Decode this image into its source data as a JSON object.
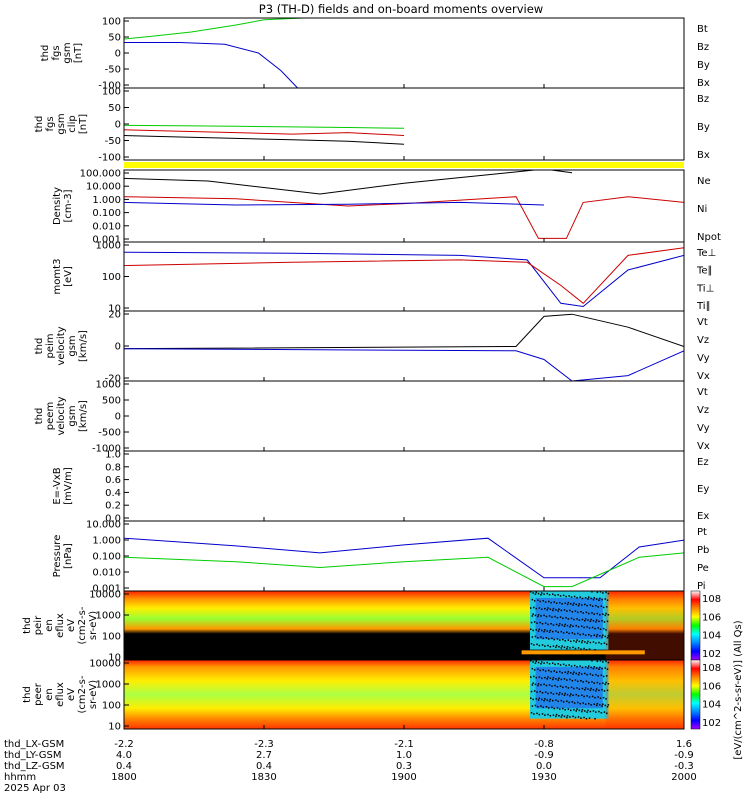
{
  "title": "P3 (TH-D) fields and on-board moments overview",
  "colors": {
    "black": "#000000",
    "red": "#cc0000",
    "green": "#00cc00",
    "blue": "#0000cc",
    "yellow": "#ffff00"
  },
  "chart_data": [
    {
      "type": "line",
      "panel": "fgs_gsm",
      "ylabel": [
        "thd",
        "fgs",
        "gsm",
        "[nT]"
      ],
      "ylim": [
        -100,
        100
      ],
      "ticks": [
        "100",
        "50",
        "0",
        "-50",
        "-100"
      ],
      "legend": [
        {
          "name": "Bt",
          "color": "black"
        },
        {
          "name": "Bz",
          "color": "red"
        },
        {
          "name": "By",
          "color": "green"
        },
        {
          "name": "Bx",
          "color": "blue"
        }
      ],
      "series": [
        {
          "name": "By",
          "color": "green",
          "x": [
            0,
            0.05,
            0.12,
            0.2,
            0.25,
            0.32
          ],
          "y": [
            40,
            48,
            60,
            80,
            95,
            100
          ]
        },
        {
          "name": "Bx",
          "color": "blue",
          "x": [
            0,
            0.1,
            0.18,
            0.24,
            0.28,
            0.31
          ],
          "y": [
            30,
            30,
            25,
            0,
            -50,
            -100
          ]
        }
      ]
    },
    {
      "type": "line",
      "panel": "fgs_gsm_clip",
      "ylabel": [
        "thd",
        "fgs",
        "gsm",
        "clip",
        "[nT]"
      ],
      "ylim": [
        -125,
        125
      ],
      "ticks": [
        "100",
        "50",
        "0",
        "-50",
        "-100"
      ],
      "legend": [
        {
          "name": "Bz",
          "color": "red"
        },
        {
          "name": "By",
          "color": "green"
        },
        {
          "name": "Bx",
          "color": "black"
        }
      ],
      "series": [
        {
          "name": "Bz",
          "color": "red",
          "x": [
            0,
            0.1,
            0.2,
            0.3,
            0.4,
            0.5
          ],
          "y": [
            -20,
            -25,
            -30,
            -35,
            -30,
            -40
          ]
        },
        {
          "name": "By",
          "color": "green",
          "x": [
            0,
            0.1,
            0.2,
            0.3,
            0.4,
            0.5
          ],
          "y": [
            -5,
            -6,
            -8,
            -10,
            -12,
            -15
          ]
        },
        {
          "name": "Bx",
          "color": "black",
          "x": [
            0,
            0.1,
            0.2,
            0.3,
            0.4,
            0.5
          ],
          "y": [
            -40,
            -45,
            -50,
            -55,
            -60,
            -70
          ]
        }
      ]
    },
    {
      "type": "line",
      "panel": "density",
      "ylabel": [
        "Density",
        "[cm-3]"
      ],
      "log": true,
      "ylim": [
        0.0005,
        500
      ],
      "ticks": [
        "100.000",
        "10.000",
        "1.000",
        "0.100",
        "0.010",
        "0.001"
      ],
      "legend": [
        {
          "name": "Ne",
          "color": "red"
        },
        {
          "name": "Ni",
          "color": "black"
        },
        {
          "name": "Npot",
          "color": "blue"
        }
      ],
      "series": [
        {
          "name": "Ni",
          "color": "black",
          "x": [
            0,
            0.15,
            0.35,
            0.5,
            0.65,
            0.75,
            0.8
          ],
          "y": [
            100,
            60,
            5,
            40,
            200,
            600,
            300
          ]
        },
        {
          "name": "Ne",
          "color": "red",
          "x": [
            0,
            0.2,
            0.4,
            0.5,
            0.7,
            0.74,
            0.79,
            0.82,
            0.9,
            1
          ],
          "y": [
            3,
            2,
            0.5,
            0.8,
            3,
            0.001,
            0.001,
            1,
            3,
            1
          ]
        },
        {
          "name": "Npot",
          "color": "blue",
          "x": [
            0,
            0.2,
            0.4,
            0.6,
            0.75
          ],
          "y": [
            1,
            0.6,
            0.7,
            1,
            0.6
          ]
        }
      ]
    },
    {
      "type": "line",
      "panel": "moms",
      "ylabel": [
        "momt3",
        "[eV]"
      ],
      "log": true,
      "ylim": [
        10,
        5000
      ],
      "ticks": [
        "1000",
        "100",
        "10"
      ],
      "legend": [
        {
          "name": "Te⊥",
          "color": "red"
        },
        {
          "name": "Te∥",
          "color": "black"
        },
        {
          "name": "Ti⊥",
          "color": "blue"
        },
        {
          "name": "Ti∥",
          "color": "green"
        }
      ],
      "series": [
        {
          "name": "Ti⊥",
          "color": "blue",
          "x": [
            0,
            0.3,
            0.6,
            0.72,
            0.78,
            0.82,
            0.9,
            1
          ],
          "y": [
            2000,
            1800,
            1500,
            1000,
            20,
            15,
            400,
            1500
          ]
        },
        {
          "name": "Te⊥",
          "color": "red",
          "x": [
            0,
            0.3,
            0.6,
            0.72,
            0.78,
            0.82,
            0.9,
            1
          ],
          "y": [
            600,
            800,
            1000,
            800,
            100,
            20,
            1500,
            3000
          ]
        }
      ]
    },
    {
      "type": "line",
      "panel": "peim_velocity",
      "ylabel": [
        "thd",
        "peim",
        "velocity",
        "gsm",
        "[km/s]"
      ],
      "ylim": [
        -30,
        35
      ],
      "ticks": [
        "20",
        "0",
        "-20"
      ],
      "legend": [
        {
          "name": "Vt",
          "color": "black"
        },
        {
          "name": "Vz",
          "color": "red"
        },
        {
          "name": "Vy",
          "color": "green"
        },
        {
          "name": "Vx",
          "color": "blue"
        }
      ],
      "series": [
        {
          "name": "Vt",
          "color": "black",
          "x": [
            0,
            0.7,
            0.75,
            0.8,
            0.9,
            1
          ],
          "y": [
            0,
            2,
            30,
            32,
            20,
            2
          ]
        },
        {
          "name": "Vx",
          "color": "blue",
          "x": [
            0,
            0.7,
            0.75,
            0.8,
            0.9,
            1
          ],
          "y": [
            0,
            -2,
            -10,
            -30,
            -25,
            -2
          ]
        }
      ]
    },
    {
      "type": "line",
      "panel": "peem_velocity",
      "ylabel": [
        "thd",
        "peem",
        "velocity",
        "gsm",
        "[km/s]"
      ],
      "ylim": [
        -1400,
        1400
      ],
      "ticks": [
        "1000",
        "500",
        "0",
        "-500",
        "-1000"
      ],
      "legend": [
        {
          "name": "Vt",
          "color": "black"
        },
        {
          "name": "Vz",
          "color": "red"
        },
        {
          "name": "Vy",
          "color": "green"
        },
        {
          "name": "Vx",
          "color": "blue"
        }
      ],
      "series": []
    },
    {
      "type": "line",
      "panel": "efield",
      "ylabel": [
        "E=-VxB",
        "[mV/m]"
      ],
      "ylim": [
        0,
        1
      ],
      "ticks": [
        "1.0",
        "0.8",
        "0.6",
        "0.4",
        "0.2",
        "0.0"
      ],
      "legend": [
        {
          "name": "Ez",
          "color": "red"
        },
        {
          "name": "Ey",
          "color": "green"
        },
        {
          "name": "Ex",
          "color": "blue"
        }
      ],
      "series": []
    },
    {
      "type": "line",
      "panel": "pressure",
      "ylabel": [
        "Pressure",
        "[nPa]"
      ],
      "log": true,
      "ylim": [
        0.0005,
        30
      ],
      "ticks": [
        "10.000",
        "1.000",
        "0.100",
        "0.010",
        "0.001"
      ],
      "legend": [
        {
          "name": "Pt",
          "color": "black"
        },
        {
          "name": "Pb",
          "color": "red"
        },
        {
          "name": "Pe",
          "color": "green"
        },
        {
          "name": "Pi",
          "color": "blue"
        }
      ],
      "series": [
        {
          "name": "Pi",
          "color": "blue",
          "x": [
            0,
            0.2,
            0.35,
            0.5,
            0.65,
            0.75,
            0.85,
            0.92,
            1
          ],
          "y": [
            2,
            0.6,
            0.2,
            0.7,
            2,
            0.004,
            0.004,
            0.5,
            1.5
          ]
        },
        {
          "name": "Pe",
          "color": "green",
          "x": [
            0,
            0.2,
            0.35,
            0.5,
            0.65,
            0.75,
            0.8,
            0.92,
            1
          ],
          "y": [
            0.1,
            0.05,
            0.02,
            0.05,
            0.1,
            0.001,
            0.001,
            0.1,
            0.2
          ]
        }
      ]
    },
    {
      "type": "heatmap",
      "panel": "peir_en_eflux",
      "ylabel": [
        "thd",
        "peir",
        "en",
        "eflux",
        "eV",
        "(cm2-s-",
        "sr-eV)"
      ],
      "log": true,
      "ylim": [
        5,
        20000
      ],
      "ticks": [
        "10000",
        "1000",
        "100",
        "10"
      ]
    },
    {
      "type": "heatmap",
      "panel": "peer_en_eflux",
      "ylabel": [
        "thd",
        "peer",
        "en",
        "eflux",
        "eV",
        "(cm2-s-",
        "sr-eV)"
      ],
      "log": true,
      "ylim": [
        5,
        20000
      ],
      "ticks": [
        "10000",
        "1000",
        "100",
        "10"
      ]
    }
  ],
  "colorbar": {
    "label": "[eV/(cm^2-s-sr-eV)] (All Qs)",
    "ticks_top": [
      "10^8",
      "10^6",
      "10^4",
      "10^2"
    ],
    "ticks_bottom": [
      "10^8",
      "10^6",
      "10^4",
      "10^2"
    ],
    "stops": [
      "#ffffff",
      "#ff0000",
      "#ff8800",
      "#ffff00",
      "#00ff00",
      "#00ffff",
      "#0088ff",
      "#0000ff",
      "#aa00ff"
    ]
  },
  "xaxis": {
    "rows": [
      {
        "label": "thd_LX-GSM",
        "values": [
          "-2.2",
          "-2.3",
          "-2.1",
          "-0.8",
          "1.6"
        ]
      },
      {
        "label": "thd_LY-GSM",
        "values": [
          "4.0",
          "2.7",
          "1.0",
          "-0.9",
          "-0.9"
        ]
      },
      {
        "label": "thd_LZ-GSM",
        "values": [
          "0.4",
          "0.4",
          "0.3",
          "0.0",
          "-0.3"
        ]
      },
      {
        "label": "hhmm",
        "values": [
          "1800",
          "1830",
          "1900",
          "1930",
          "2000"
        ]
      }
    ],
    "date": "2025 Apr 03"
  }
}
